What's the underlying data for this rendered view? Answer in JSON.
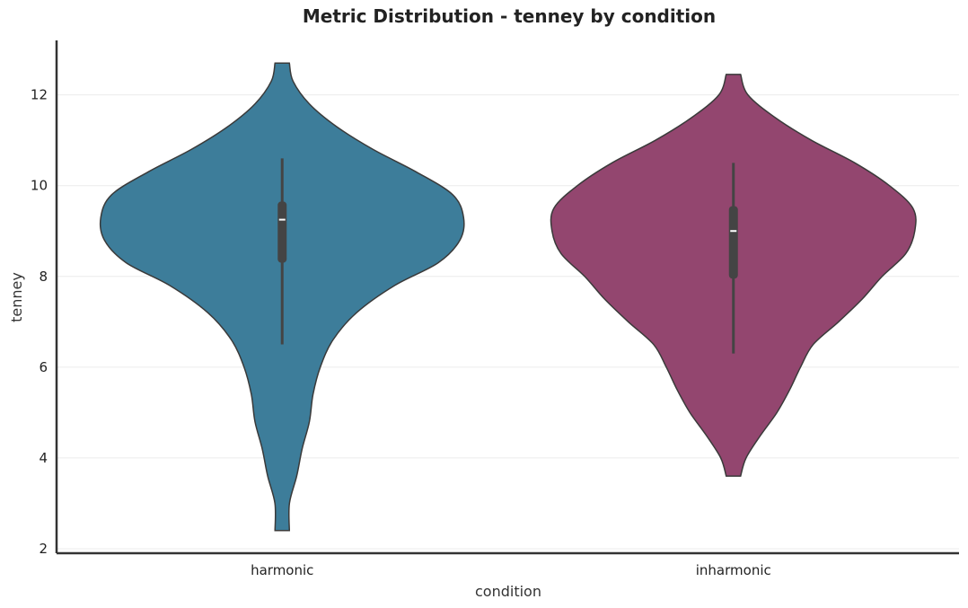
{
  "chart_data": {
    "type": "violin",
    "title": "Metric Distribution - tenney by condition",
    "xlabel": "condition",
    "ylabel": "tenney",
    "categories": [
      "harmonic",
      "inharmonic"
    ],
    "ylim": [
      1.9,
      13.2
    ],
    "yticks": [
      2,
      4,
      6,
      8,
      10,
      12
    ],
    "grid": true,
    "colors": [
      "#3d7d9a",
      "#93466f"
    ],
    "series": [
      {
        "category": "harmonic",
        "color": "#3d7d9a",
        "min": 2.4,
        "max": 12.7,
        "whisker_low": 6.5,
        "whisker_high": 10.6,
        "q1": 8.3,
        "median": 9.25,
        "q3": 9.65,
        "density": [
          [
            2.4,
            0.0
          ],
          [
            3.0,
            0.04
          ],
          [
            3.6,
            0.08
          ],
          [
            4.2,
            0.11
          ],
          [
            4.8,
            0.15
          ],
          [
            5.4,
            0.17
          ],
          [
            6.0,
            0.21
          ],
          [
            6.6,
            0.28
          ],
          [
            7.2,
            0.41
          ],
          [
            7.8,
            0.62
          ],
          [
            8.3,
            0.86
          ],
          [
            8.8,
            0.98
          ],
          [
            9.3,
            1.0
          ],
          [
            9.8,
            0.94
          ],
          [
            10.3,
            0.74
          ],
          [
            10.8,
            0.5
          ],
          [
            11.3,
            0.3
          ],
          [
            11.8,
            0.15
          ],
          [
            12.3,
            0.06
          ],
          [
            12.7,
            0.0
          ]
        ]
      },
      {
        "category": "inharmonic",
        "color": "#93466f",
        "min": 3.6,
        "max": 12.45,
        "whisker_low": 6.3,
        "whisker_high": 10.5,
        "q1": 7.95,
        "median": 9.0,
        "q3": 9.55,
        "density": [
          [
            3.6,
            0.0
          ],
          [
            4.0,
            0.07
          ],
          [
            4.5,
            0.15
          ],
          [
            5.0,
            0.24
          ],
          [
            5.5,
            0.31
          ],
          [
            6.0,
            0.37
          ],
          [
            6.5,
            0.44
          ],
          [
            7.0,
            0.58
          ],
          [
            7.5,
            0.71
          ],
          [
            8.0,
            0.82
          ],
          [
            8.5,
            0.95
          ],
          [
            9.0,
            1.0
          ],
          [
            9.5,
            0.99
          ],
          [
            10.0,
            0.86
          ],
          [
            10.5,
            0.67
          ],
          [
            11.0,
            0.43
          ],
          [
            11.5,
            0.23
          ],
          [
            12.0,
            0.08
          ],
          [
            12.45,
            0.0
          ]
        ]
      }
    ]
  }
}
